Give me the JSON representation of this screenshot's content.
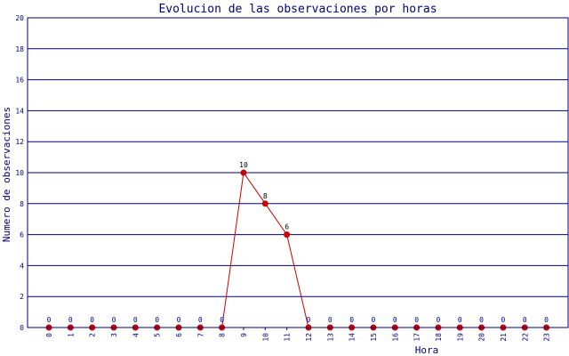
{
  "chart_data": {
    "type": "line",
    "title": "Evolucion de las observaciones por horas",
    "xlabel": "Hora",
    "ylabel": "Numero de observaciones",
    "ylim": [
      0,
      20
    ],
    "yticks": [
      0,
      2,
      4,
      6,
      8,
      10,
      12,
      14,
      16,
      18,
      20
    ],
    "x": [
      "0",
      "1",
      "2",
      "3",
      "4",
      "5",
      "6",
      "7",
      "8",
      "9",
      "10",
      "11",
      "12",
      "13",
      "14",
      "15",
      "16",
      "17",
      "18",
      "19",
      "20",
      "21",
      "22",
      "23"
    ],
    "values": [
      0,
      0,
      0,
      0,
      0,
      0,
      0,
      0,
      0,
      10,
      8,
      6,
      0,
      0,
      0,
      0,
      0,
      0,
      0,
      0,
      0,
      0,
      0,
      0
    ],
    "grid": true,
    "legend": "none",
    "colors": {
      "line": "#cc0000",
      "marker": "#cc0000",
      "grid": "#000080",
      "text": "#00007a"
    }
  }
}
